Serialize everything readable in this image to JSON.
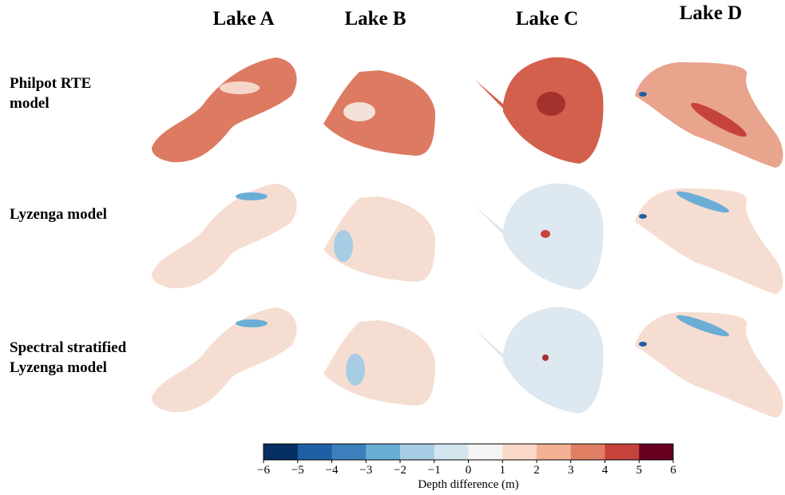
{
  "columns": [
    "Lake A",
    "Lake B",
    "Lake C",
    "Lake D"
  ],
  "rows": [
    "Philpot RTE model",
    "Lyzenga model",
    "Spectral stratified Lyzenga model"
  ],
  "colorbar": {
    "label": "Depth difference (m)",
    "lim": [
      -6,
      6
    ],
    "ticks": [
      {
        "value": -6,
        "label": "−6"
      },
      {
        "value": -5,
        "label": "−5"
      },
      {
        "value": -4,
        "label": "−4"
      },
      {
        "value": -3,
        "label": "−3"
      },
      {
        "value": -2,
        "label": "−2"
      },
      {
        "value": -1,
        "label": "−1"
      },
      0,
      1,
      2,
      3,
      4,
      5,
      6
    ],
    "colors": [
      "#053061",
      "#1f5fa6",
      "#3b7fbd",
      "#6aaed6",
      "#a6cde3",
      "#d4e5ef",
      "#f5f5f5",
      "#fbd9c8",
      "#f4b093",
      "#e07f63",
      "#c6433b",
      "#67001f"
    ]
  }
}
